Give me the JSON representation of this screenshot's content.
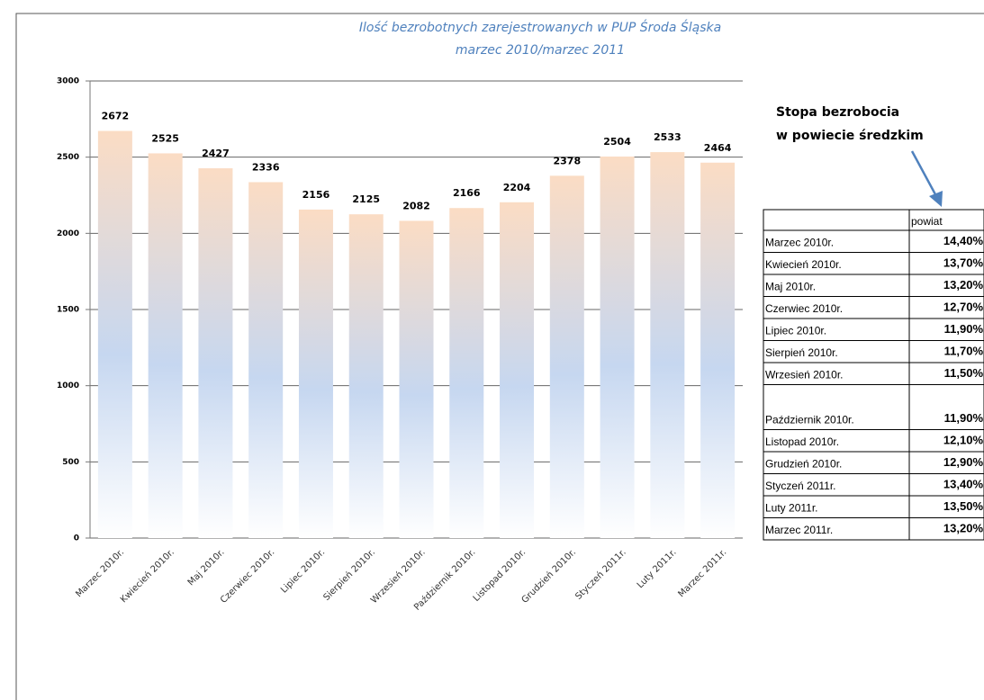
{
  "chart_data": {
    "type": "bar",
    "title": "Ilość bezrobotnych zarejestrowanych  w PUP Środa Śląska",
    "subtitle": "marzec 2010/marzec 2011",
    "categories": [
      "Marzec 2010r.",
      "Kwiecień 2010r.",
      "Maj 2010r.",
      "Czerwiec 2010r.",
      "Lipiec 2010r.",
      "Sierpień 2010r.",
      "Wrzesień 2010r.",
      "Październik 2010r.",
      "Listopad 2010r.",
      "Grudzień 2010r.",
      "Styczeń 2011r.",
      "Luty 2011r.",
      "Marzec 2011r."
    ],
    "values": [
      2672,
      2525,
      2427,
      2336,
      2156,
      2125,
      2082,
      2166,
      2204,
      2378,
      2504,
      2533,
      2464
    ],
    "ylim": [
      0,
      3000
    ],
    "yticks": [
      0,
      500,
      1000,
      1500,
      2000,
      2500,
      3000
    ],
    "grid": true
  },
  "annotation": {
    "lines": [
      "Stopa bezrobocia",
      "w powiecie średzkim"
    ]
  },
  "table": {
    "header": "powiat",
    "rows": [
      [
        "Marzec 2010r.",
        "14,40%"
      ],
      [
        "Kwiecień 2010r.",
        "13,70%"
      ],
      [
        "Maj 2010r.",
        "13,20%"
      ],
      [
        "Czerwiec 2010r.",
        "12,70%"
      ],
      [
        "Lipiec 2010r.",
        "11,90%"
      ],
      [
        "Sierpień 2010r.",
        "11,70%"
      ],
      [
        "Wrzesień 2010r.",
        "11,50%"
      ],
      [
        "Październik 2010r.",
        "11,90%"
      ],
      [
        "Listopad 2010r.",
        "12,10%"
      ],
      [
        "Grudzień 2010r.",
        "12,90%"
      ],
      [
        "Styczeń 2011r.",
        "13,40%"
      ],
      [
        "Luty 2011r.",
        "13,50%"
      ],
      [
        "Marzec 2011r.",
        "13,20%"
      ]
    ]
  }
}
